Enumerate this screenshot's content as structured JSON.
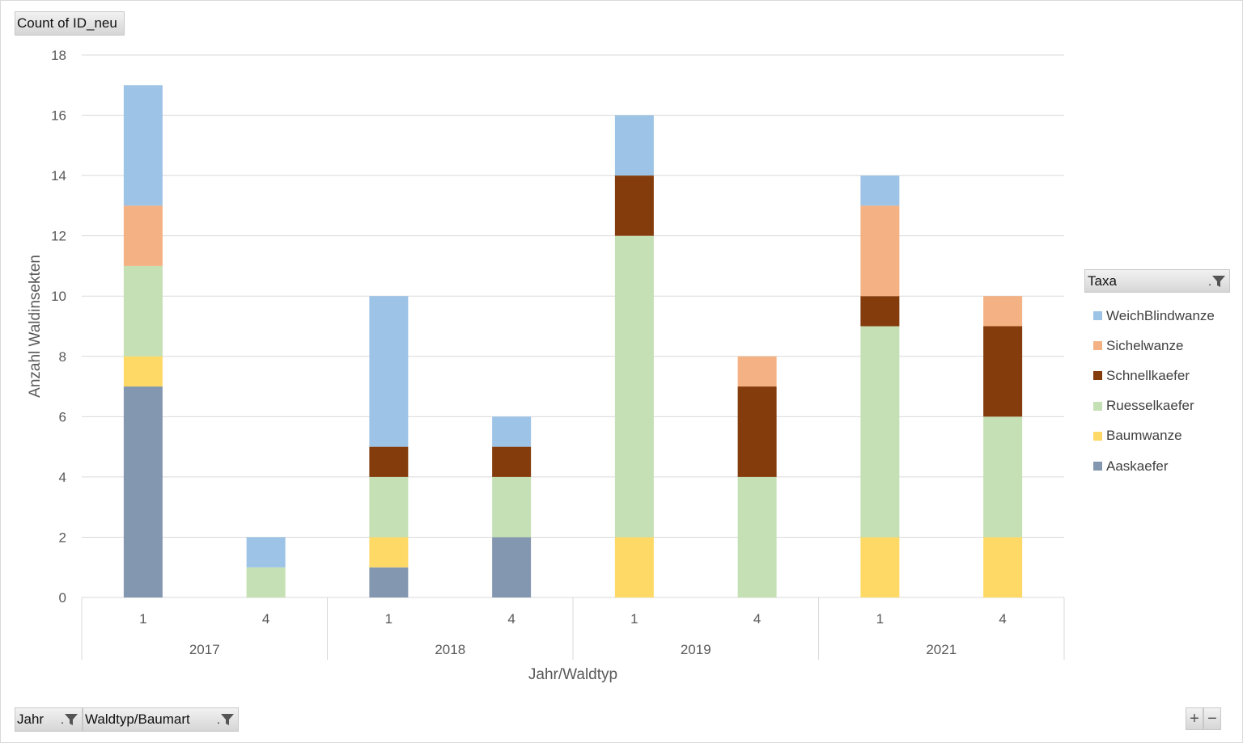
{
  "values_field": "Count of ID_neu",
  "axis_fields": [
    {
      "label": "Jahr"
    },
    {
      "label": "Waldtyp/Baumart"
    }
  ],
  "legend": {
    "title": "Taxa",
    "items": [
      {
        "label": "WeichBlindwanze",
        "color": "#9dc3e6"
      },
      {
        "label": "Sichelwanze",
        "color": "#f4b183"
      },
      {
        "label": "Schnellkaefer",
        "color": "#843c0c"
      },
      {
        "label": "Ruesselkaefer",
        "color": "#c5e0b4"
      },
      {
        "label": "Baumwanze",
        "color": "#ffd966"
      },
      {
        "label": "Aaskaefer",
        "color": "#8497b0"
      }
    ]
  },
  "zoom": {
    "plus": "+",
    "minus": "−"
  },
  "chart_data": {
    "type": "bar",
    "stacked": true,
    "ylabel": "Anzahl Waldinsekten",
    "xlabel": "Jahr/Waldtyp",
    "ylim": [
      0,
      18
    ],
    "yticks": [
      0,
      2,
      4,
      6,
      8,
      10,
      12,
      14,
      16,
      18
    ],
    "grid": true,
    "legend_position": "right",
    "groups": [
      {
        "label": "2017",
        "categories": [
          "1",
          "4"
        ]
      },
      {
        "label": "2018",
        "categories": [
          "1",
          "4"
        ]
      },
      {
        "label": "2019",
        "categories": [
          "1",
          "4"
        ]
      },
      {
        "label": "2021",
        "categories": [
          "1",
          "4"
        ]
      }
    ],
    "categories": [
      "2017/1",
      "2017/4",
      "2018/1",
      "2018/4",
      "2019/1",
      "2019/4",
      "2021/1",
      "2021/4"
    ],
    "series": [
      {
        "name": "Aaskaefer",
        "color": "#8497b0",
        "values": [
          7,
          0,
          1,
          2,
          0,
          0,
          0,
          0
        ]
      },
      {
        "name": "Baumwanze",
        "color": "#ffd966",
        "values": [
          1,
          0,
          1,
          0,
          2,
          0,
          2,
          2
        ]
      },
      {
        "name": "Ruesselkaefer",
        "color": "#c5e0b4",
        "values": [
          3,
          1,
          2,
          2,
          10,
          4,
          7,
          4
        ]
      },
      {
        "name": "Schnellkaefer",
        "color": "#843c0c",
        "values": [
          0,
          0,
          1,
          1,
          2,
          3,
          1,
          3
        ]
      },
      {
        "name": "Sichelwanze",
        "color": "#f4b183",
        "values": [
          2,
          0,
          0,
          0,
          0,
          1,
          3,
          1
        ]
      },
      {
        "name": "WeichBlindwanze",
        "color": "#9dc3e6",
        "values": [
          4,
          1,
          5,
          1,
          2,
          0,
          1,
          0
        ]
      }
    ]
  }
}
